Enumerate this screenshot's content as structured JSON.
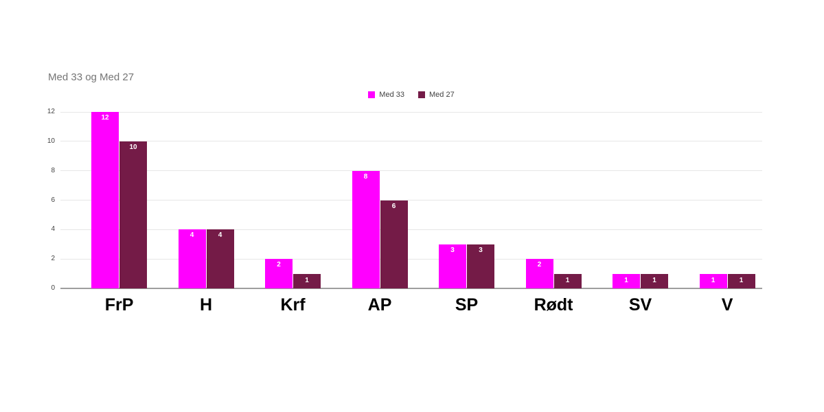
{
  "chart_data": {
    "type": "bar",
    "title": "Med 33 og Med 27",
    "categories": [
      "FrP",
      "H",
      "Krf",
      "AP",
      "SP",
      "Rødt",
      "SV",
      "V"
    ],
    "series": [
      {
        "name": "Med 33",
        "color": "#ff00ff",
        "values": [
          12,
          4,
          2,
          8,
          3,
          2,
          1,
          1
        ]
      },
      {
        "name": "Med 27",
        "color": "#741b47",
        "values": [
          10,
          4,
          1,
          6,
          3,
          1,
          1,
          1
        ]
      }
    ],
    "xlabel": "",
    "ylabel": "",
    "ylim": [
      0,
      12
    ],
    "yticks": [
      0,
      2,
      4,
      6,
      8,
      10,
      12
    ],
    "grid": true,
    "legend_position": "top",
    "bar_labels": true
  },
  "colors": {
    "background": "#ffffff",
    "title_text": "#757575",
    "axis_text": "#424242",
    "legend_text": "#424242",
    "category_text": "#000000",
    "gridline": "#e6e6e6",
    "axis_line": "#9e9e9e",
    "bar_label_text": "#ffffff"
  }
}
